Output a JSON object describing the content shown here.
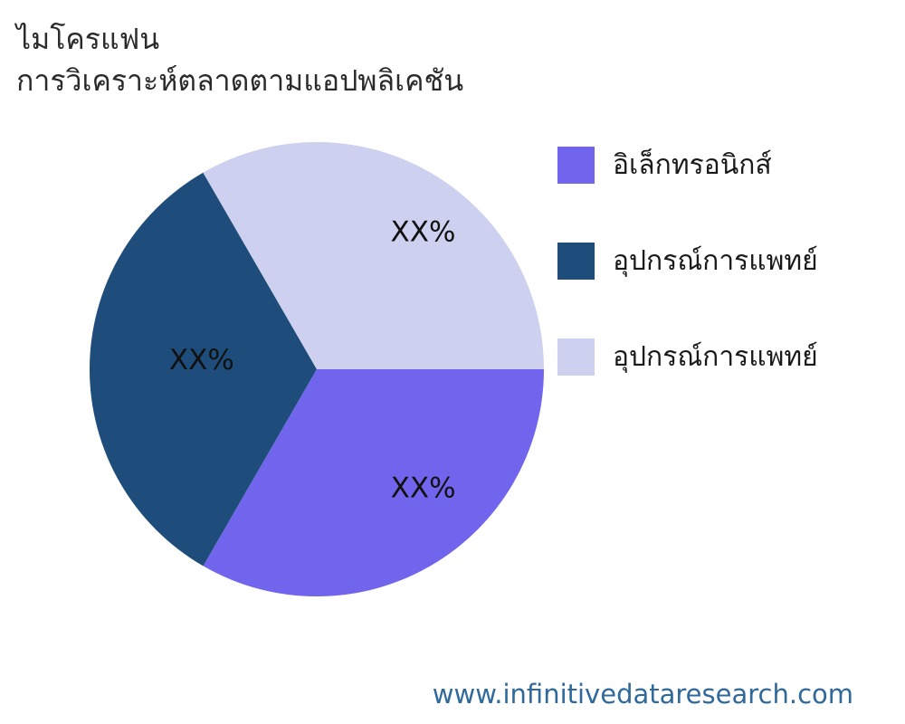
{
  "chart_data": {
    "type": "pie",
    "title": "ไมโครแฟน",
    "subtitle": "การวิเคราะห์ตลาดตามแอปพลิเคชัน",
    "slices": [
      {
        "label": "อิเล็กทรอนิกส์",
        "value": 33.33,
        "pct_label": "XX%",
        "color": "#7165ee"
      },
      {
        "label": "อุปกรณ์การแพทย์",
        "value": 33.33,
        "pct_label": "XX%",
        "color": "#1e4d7c"
      },
      {
        "label": "อุปกรณ์การแพทย์",
        "value": 33.34,
        "pct_label": "XX%",
        "color": "#cdd0ee"
      }
    ],
    "start_angle_deg": 0,
    "direction": "clockwise",
    "legend_position": "right",
    "pct_label_distance": 0.65,
    "text_color": "#111111"
  },
  "footer": {
    "website": "www.infinitivedataresearch.com",
    "color": "#30699c"
  }
}
